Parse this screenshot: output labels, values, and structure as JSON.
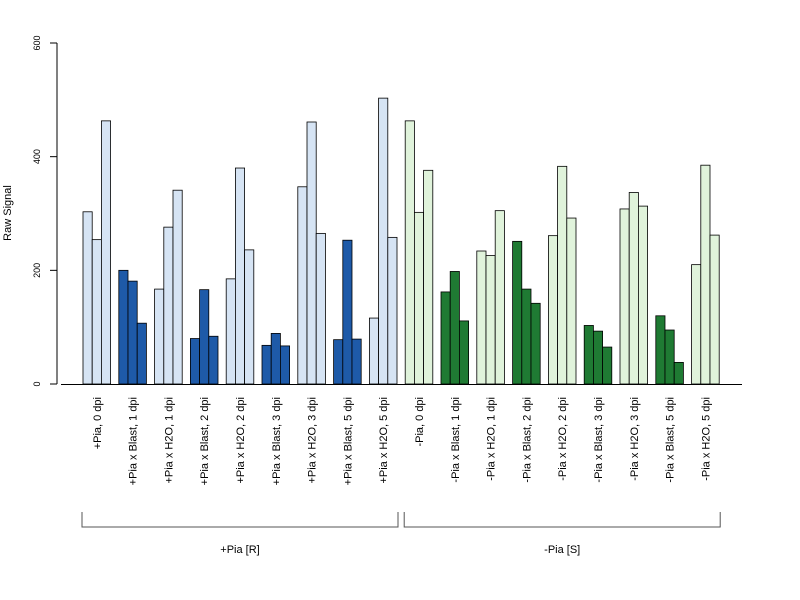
{
  "chart_data": {
    "type": "bar",
    "ylabel": "Raw Signal",
    "xlabel": "",
    "title": "",
    "ylim": [
      0,
      600
    ],
    "yticks": [
      0,
      200,
      400,
      600
    ],
    "grid": false,
    "legend": "none",
    "colors": {
      "light_blue": "#d6e4f4",
      "dark_blue": "#1e5aa8",
      "light_green": "#e0f3db",
      "dark_green": "#1f7a33",
      "border": "#000000"
    },
    "categories": [
      {
        "label": "+Pia, 0 dpi",
        "values": [
          303,
          254,
          463
        ],
        "color": "light_blue"
      },
      {
        "label": "+Pia x Blast, 1 dpi",
        "values": [
          200,
          181,
          107
        ],
        "color": "dark_blue"
      },
      {
        "label": "+Pia x H2O, 1 dpi",
        "values": [
          167,
          276,
          341
        ],
        "color": "light_blue"
      },
      {
        "label": "+Pia x Blast, 2 dpi",
        "values": [
          80,
          166,
          84
        ],
        "color": "dark_blue"
      },
      {
        "label": "+Pia x H2O, 2 dpi",
        "values": [
          185,
          380,
          236
        ],
        "color": "light_blue"
      },
      {
        "label": "+Pia x Blast, 3 dpi",
        "values": [
          68,
          89,
          67
        ],
        "color": "dark_blue"
      },
      {
        "label": "+Pia x H2O, 3 dpi",
        "values": [
          347,
          461,
          265
        ],
        "color": "light_blue"
      },
      {
        "label": "+Pia x Blast, 5 dpi",
        "values": [
          78,
          253,
          79
        ],
        "color": "dark_blue"
      },
      {
        "label": "+Pia x H2O, 5 dpi",
        "values": [
          116,
          503,
          258
        ],
        "color": "light_blue"
      },
      {
        "label": "-Pia, 0 dpi",
        "values": [
          463,
          302,
          376
        ],
        "color": "light_green"
      },
      {
        "label": "-Pia x Blast, 1 dpi",
        "values": [
          162,
          198,
          111
        ],
        "color": "dark_green"
      },
      {
        "label": "-Pia x H2O, 1 dpi",
        "values": [
          234,
          226,
          305
        ],
        "color": "light_green"
      },
      {
        "label": "-Pia x Blast, 2 dpi",
        "values": [
          251,
          167,
          142
        ],
        "color": "dark_green"
      },
      {
        "label": "-Pia x H2O, 2 dpi",
        "values": [
          261,
          383,
          292
        ],
        "color": "light_green"
      },
      {
        "label": "-Pia x Blast, 3 dpi",
        "values": [
          103,
          93,
          65
        ],
        "color": "dark_green"
      },
      {
        "label": "-Pia x H2O, 3 dpi",
        "values": [
          308,
          337,
          313
        ],
        "color": "light_green"
      },
      {
        "label": "-Pia x Blast, 5 dpi",
        "values": [
          120,
          95,
          38
        ],
        "color": "dark_green"
      },
      {
        "label": "-Pia x H2O, 5 dpi",
        "values": [
          210,
          385,
          262
        ],
        "color": "light_green"
      }
    ],
    "groups": [
      {
        "label": "+Pia [R]",
        "from_category": 0,
        "to_category": 8
      },
      {
        "label": "-Pia [S]",
        "from_category": 9,
        "to_category": 17
      }
    ]
  }
}
